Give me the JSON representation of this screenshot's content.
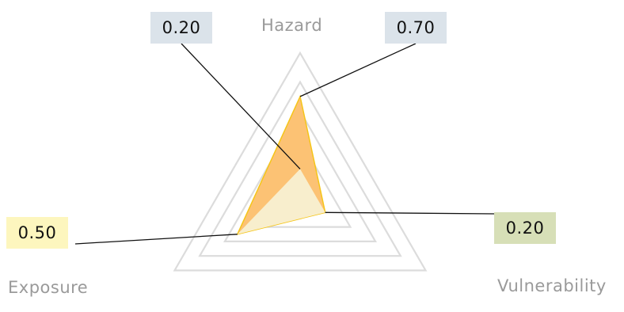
{
  "chart_data": {
    "type": "radar",
    "axes": [
      "Hazard",
      "Vulnerability",
      "Exposure"
    ],
    "rlim": [
      0,
      1
    ],
    "grid_rings": [
      1.0,
      0.8,
      0.6,
      0.4,
      0.2
    ],
    "legend": "none",
    "series": [
      {
        "values": [
          0.7,
          0.2,
          0.5
        ],
        "fill": "#fcc274",
        "stroke": "#f5c518"
      },
      {
        "values": [
          0.2,
          0.2,
          0.5
        ],
        "fill": "#f8eecd"
      }
    ],
    "callouts": [
      {
        "series": 1,
        "axis": 0,
        "label": "0.20",
        "box_color": "#dbe3ea"
      },
      {
        "series": 0,
        "axis": 0,
        "label": "0.70",
        "box_color": "#dbe3ea"
      },
      {
        "series": 0,
        "axis": 1,
        "label": "0.20",
        "box_color": "#d7dfb7"
      },
      {
        "series": 0,
        "axis": 2,
        "label": "0.50",
        "box_color": "#fdf6be"
      }
    ]
  },
  "colors": {
    "grid": "#dcdcdc",
    "axis_label": "#9a9a9a",
    "leader_line": "#111111"
  }
}
